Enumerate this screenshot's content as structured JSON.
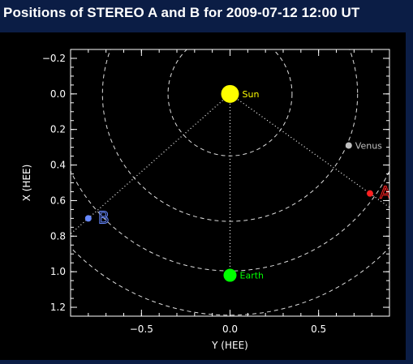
{
  "title": "Positions of STEREO A and B for 2009-07-12 12:00 UT",
  "colors": {
    "background": "#0b1d45",
    "plot_background": "#000000",
    "axes": "#ffffff",
    "sun": "#ffff00",
    "earth": "#00ff00",
    "venus": "#c0c0c0",
    "stereo_a": "#ff2020",
    "stereo_b": "#6688ff"
  },
  "chart_data": {
    "type": "scatter",
    "title": "Positions of STEREO A and B for 2009-07-12 12:00 UT",
    "xlabel": "Y (HEE)",
    "ylabel": "X (HEE)",
    "xlim": [
      -0.9,
      0.9
    ],
    "ylim": [
      1.25,
      -0.25
    ],
    "x_ticks": [
      -0.5,
      0.0,
      0.5
    ],
    "x_tick_labels": [
      "−0.5",
      "0.0",
      "0.5"
    ],
    "y_ticks": [
      -0.2,
      0.0,
      0.2,
      0.4,
      0.6,
      0.8,
      1.0,
      1.2
    ],
    "y_tick_labels": [
      "−0.2",
      "0.0",
      "0.2",
      "0.4",
      "0.6",
      "0.8",
      "1.0",
      "1.2"
    ],
    "y_reversed": true,
    "grid": false,
    "bodies": [
      {
        "name": "Sun",
        "x": 0.0,
        "y": 0.0,
        "color": "#ffff00",
        "size": "large"
      },
      {
        "name": "Earth",
        "x": 0.0,
        "y": 1.02,
        "color": "#00ff00",
        "size": "medium"
      },
      {
        "name": "Venus",
        "x": 0.67,
        "y": 0.29,
        "color": "#c0c0c0",
        "size": "small"
      }
    ],
    "spacecraft": [
      {
        "name": "A",
        "x": 0.79,
        "y": 0.56,
        "color": "#ff2020"
      },
      {
        "name": "B",
        "x": -0.8,
        "y": 0.7,
        "color": "#6688ff"
      }
    ],
    "orbit_radii_au": [
      0.35,
      0.72,
      1.0,
      1.25
    ]
  }
}
